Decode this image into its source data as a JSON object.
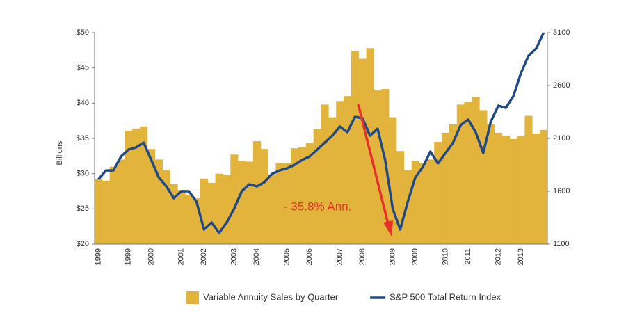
{
  "chart_data": {
    "type": "combo",
    "y_label": "Billions",
    "categories": [
      "1999",
      null,
      null,
      null,
      "1999",
      null,
      null,
      "2000",
      null,
      null,
      null,
      "2001",
      null,
      null,
      "2002",
      null,
      null,
      null,
      "2003",
      null,
      null,
      "2004",
      null,
      null,
      null,
      "2005",
      null,
      null,
      "2006",
      null,
      null,
      null,
      "2007",
      null,
      null,
      "2008",
      null,
      null,
      null,
      "2009",
      null,
      null,
      "2009",
      null,
      null,
      null,
      "2010",
      null,
      null,
      "2011",
      null,
      null,
      null,
      "2012",
      null,
      null,
      "2013",
      null,
      null,
      null
    ],
    "series": [
      {
        "name": "Variable Annuity Sales by Quarter",
        "type": "bar",
        "color": "#e3b43c",
        "values": [
          29.2,
          29.0,
          31.0,
          32.0,
          36.1,
          36.4,
          36.7,
          33.5,
          32.0,
          30.5,
          28.5,
          27.7,
          27.0,
          26.5,
          29.3,
          28.7,
          30.0,
          29.8,
          32.7,
          31.8,
          31.7,
          34.6,
          33.5,
          29.8,
          31.5,
          31.5,
          33.6,
          33.8,
          34.3,
          36.3,
          39.8,
          38.0,
          40.3,
          41.0,
          47.4,
          46.3,
          47.8,
          41.8,
          42.0,
          38.0,
          33.2,
          30.5,
          31.8,
          31.5,
          32.0,
          34.5,
          35.8,
          37.0,
          39.8,
          40.2,
          40.9,
          39.0,
          37.0,
          35.8,
          35.4,
          34.9,
          35.4,
          38.2,
          35.7,
          36.2
        ]
      },
      {
        "name": "S&P 500 Total Return Index",
        "type": "line",
        "axis": "y2",
        "color": "#1f4a87",
        "values": [
          1712,
          1797,
          1797,
          1929,
          1995,
          2015,
          2060,
          1896,
          1731,
          1646,
          1534,
          1600,
          1600,
          1501,
          1238,
          1304,
          1205,
          1304,
          1435,
          1600,
          1666,
          1646,
          1685,
          1764,
          1797,
          1817,
          1850,
          1896,
          1929,
          1995,
          2060,
          2126,
          2212,
          2159,
          2304,
          2291,
          2126,
          2192,
          1896,
          1435,
          1238,
          1501,
          1731,
          1830,
          1975,
          1863,
          1962,
          2060,
          2225,
          2278,
          2159,
          1962,
          2258,
          2409,
          2389,
          2501,
          2718,
          2883,
          2949,
          3100
        ]
      }
    ],
    "ylim": [
      20,
      50
    ],
    "yticks": [
      {
        "value": 20,
        "label": "$20"
      },
      {
        "value": 25,
        "label": "$25"
      },
      {
        "value": 30,
        "label": "$30"
      },
      {
        "value": 35,
        "label": "$35"
      },
      {
        "value": 40,
        "label": "$40"
      },
      {
        "value": 45,
        "label": "$45"
      },
      {
        "value": 50,
        "label": "$50"
      }
    ],
    "y2lim": [
      1100,
      3100
    ],
    "y2ticks": [
      1100,
      1600,
      2100,
      2600,
      3100
    ],
    "annotation": "- 35.8% Ann."
  }
}
